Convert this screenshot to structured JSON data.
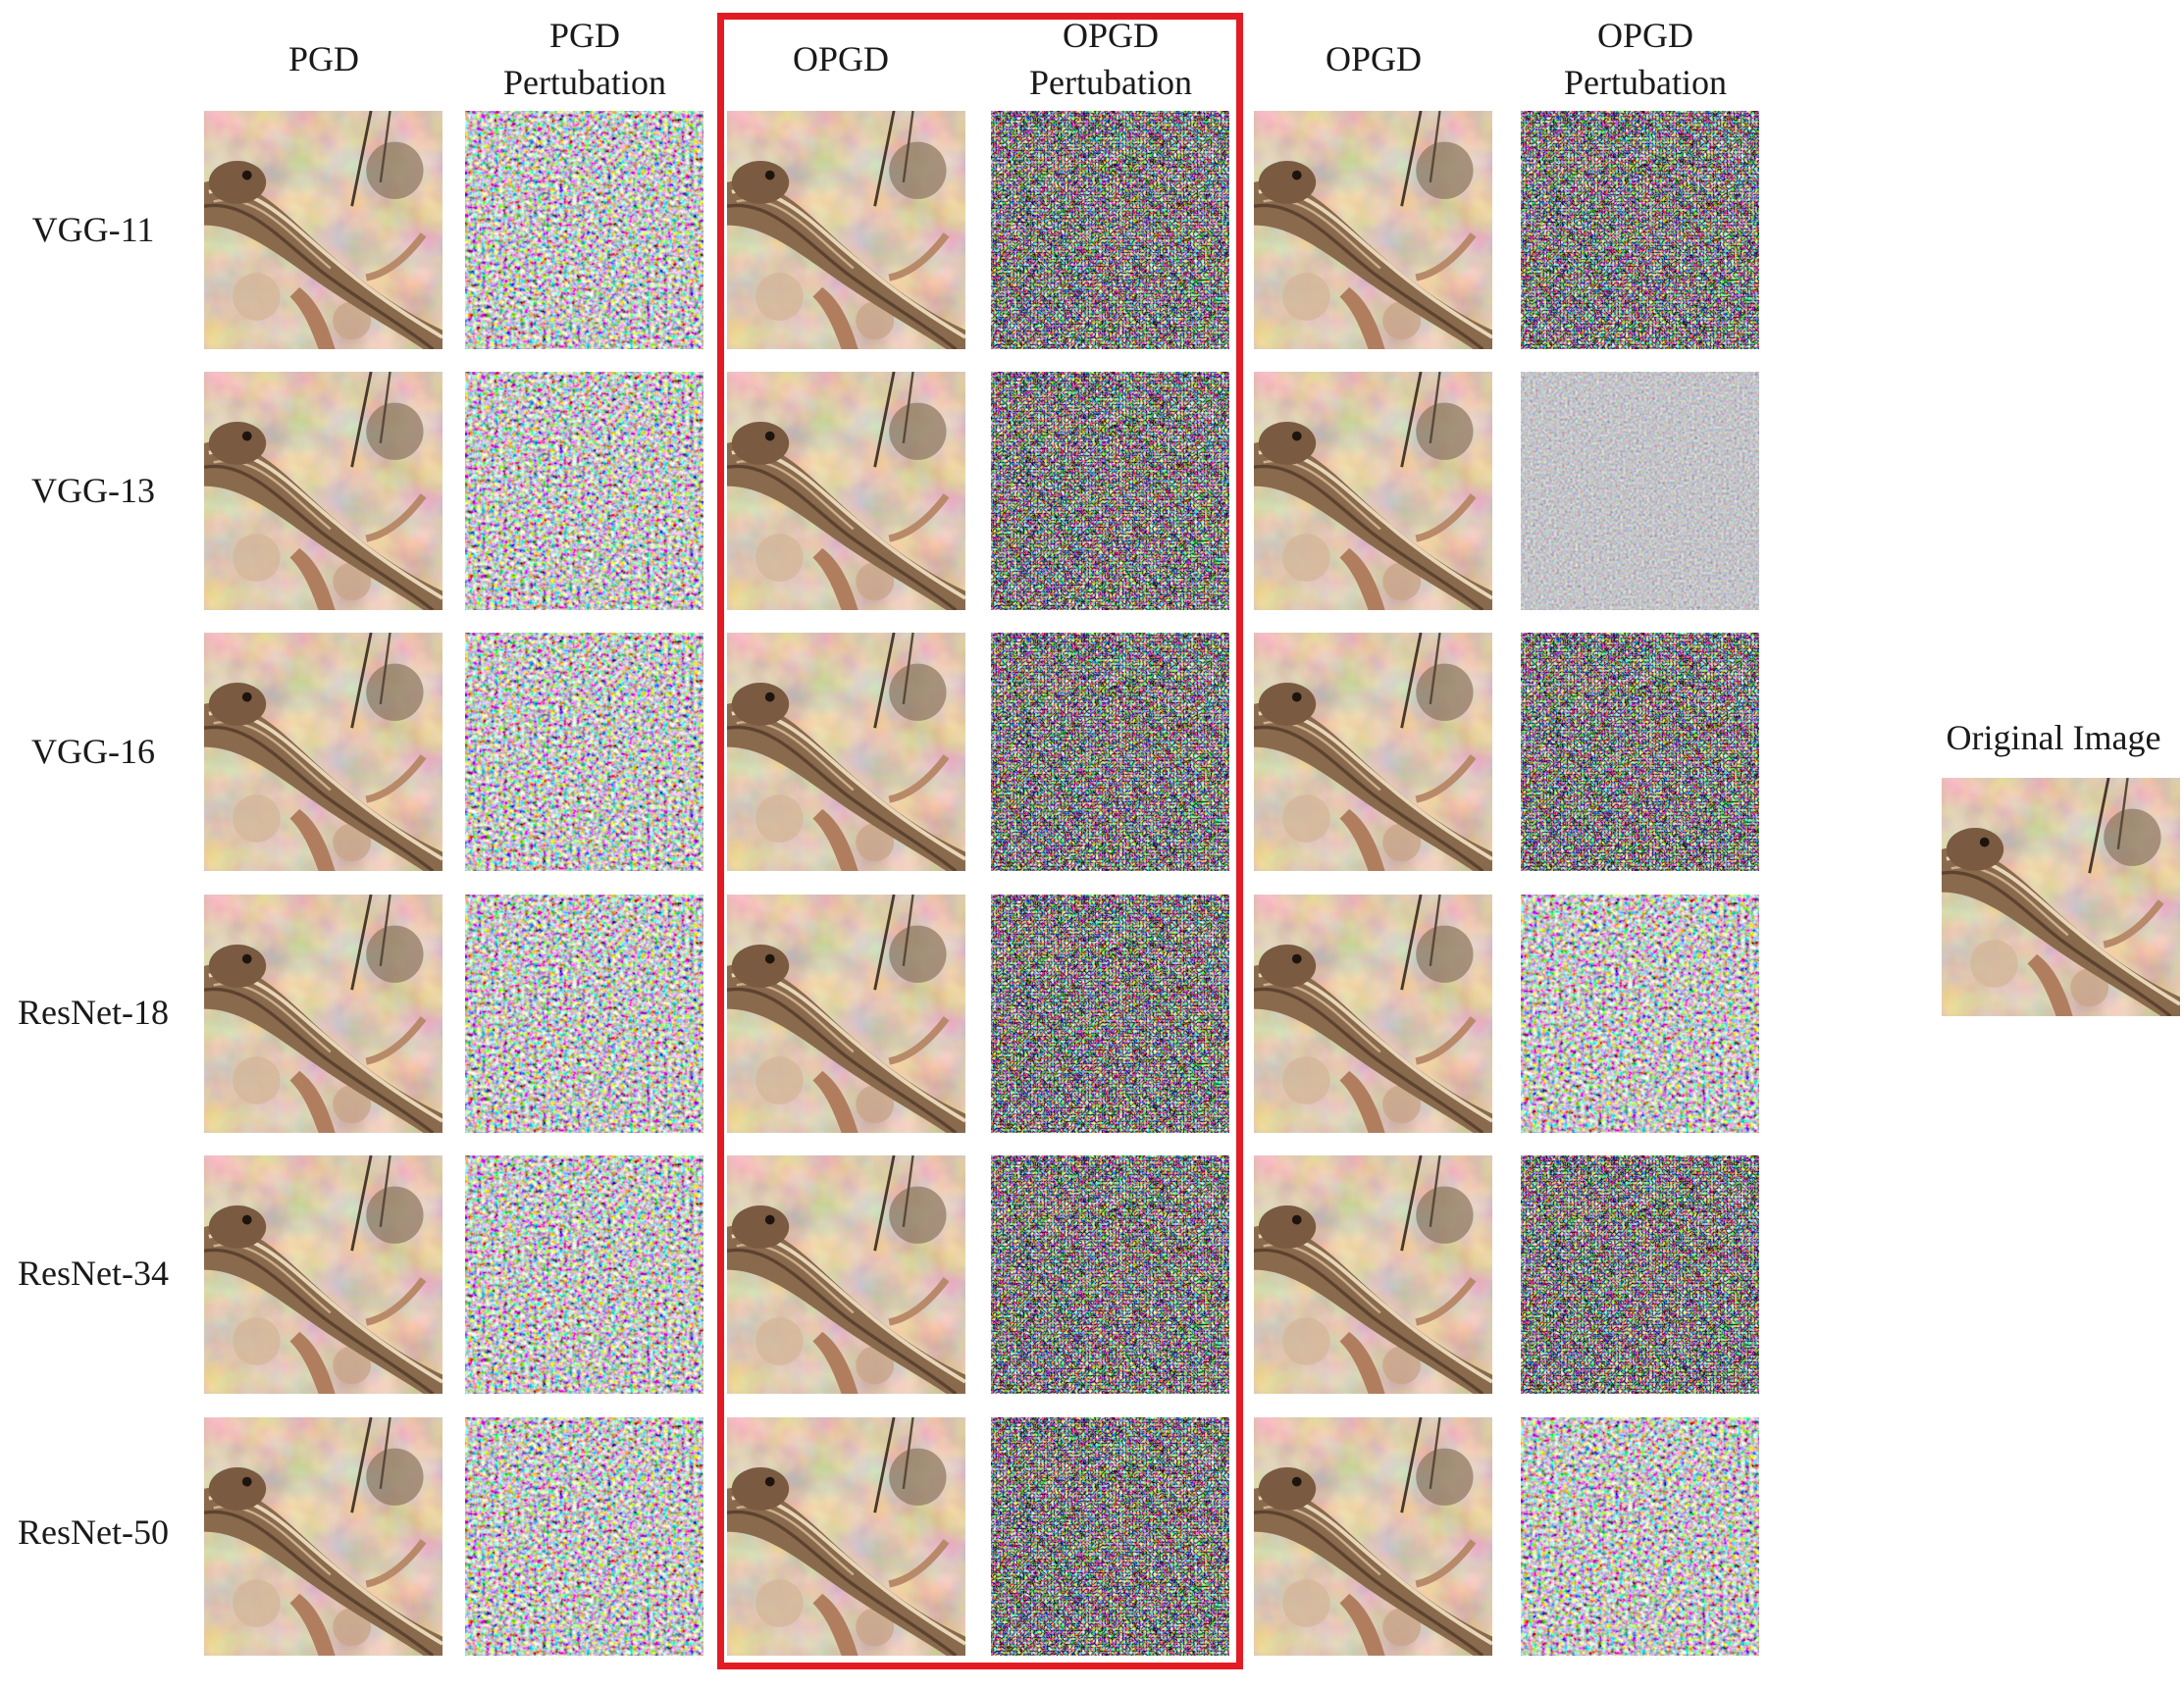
{
  "figure": {
    "column_headers": [
      "PGD",
      "PGD\nPertubation",
      "OPGD",
      "OPGD\nPertubation",
      "OPGD",
      "OPGD\nPertubation"
    ],
    "row_labels": [
      "VGG-11",
      "VGG-13",
      "VGG-16",
      "ResNet-18",
      "ResNet-34",
      "ResNet-50"
    ],
    "original_label": "Original Image",
    "highlight_color": "#e31b23",
    "tile_kinds": [
      "lizard-photo",
      "noise-perturbation",
      "lizard-photo",
      "noise-perturbation",
      "lizard-photo",
      "noise-perturbation"
    ]
  }
}
